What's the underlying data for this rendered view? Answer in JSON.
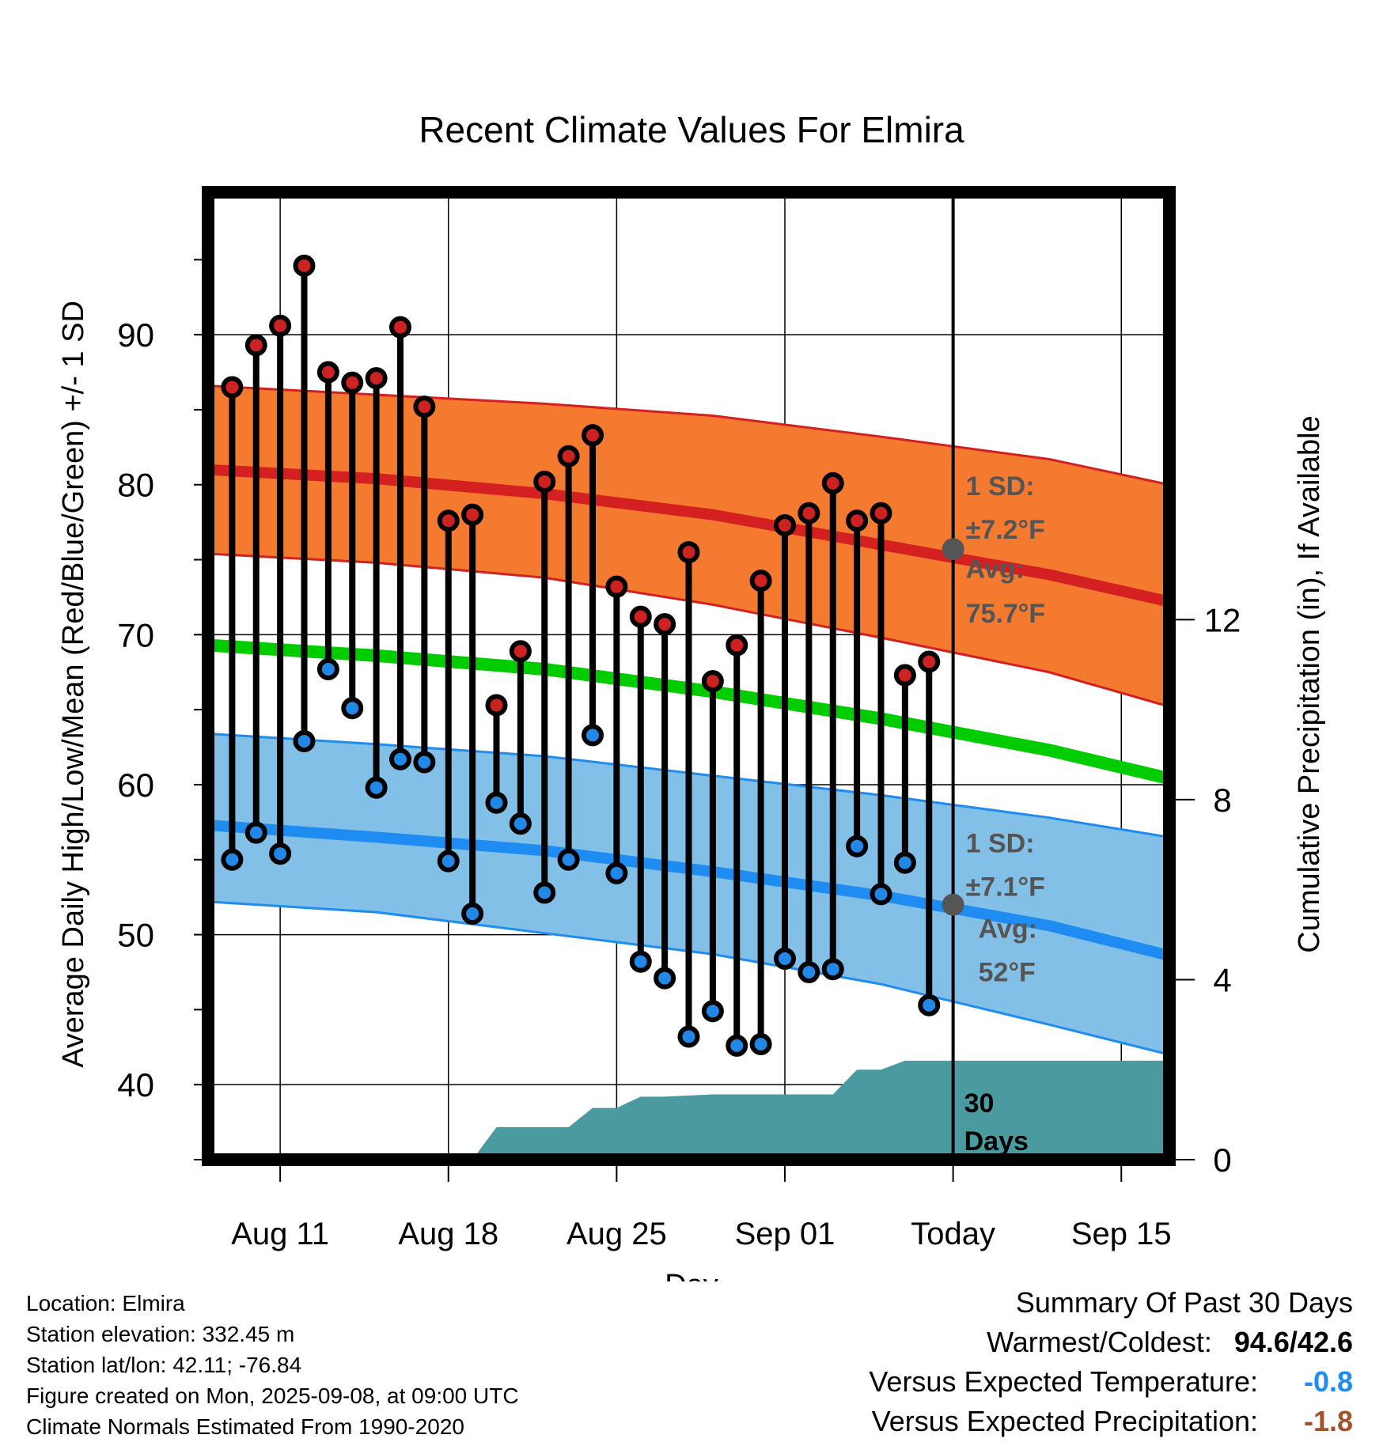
{
  "chart_data": {
    "type": "line",
    "title": "Recent Climate Values For Elmira",
    "xlabel": "Day",
    "ylabel_left": "Average Daily High/Low/Mean (Red/Blue/Green) +/- 1 SD",
    "ylabel_right": "Cumulative Precipitation (in), If Available",
    "x_ticks": [
      "Aug 11",
      "Aug 18",
      "Aug 25",
      "Sep 01",
      "Today",
      "Sep 15"
    ],
    "y_ticks_left": [
      "40",
      "50",
      "60",
      "70",
      "80",
      "90"
    ],
    "y_ticks_right": [
      "0",
      "4",
      "8",
      "12"
    ],
    "ylim_left": [
      35,
      99.5
    ],
    "ylim_right": [
      0,
      21.5
    ],
    "xlim": [
      "2025-08-08",
      "2025-09-17"
    ],
    "today": "2025-09-08",
    "grid": true,
    "days": [
      "2025-08-09",
      "2025-08-10",
      "2025-08-11",
      "2025-08-12",
      "2025-08-13",
      "2025-08-14",
      "2025-08-15",
      "2025-08-16",
      "2025-08-17",
      "2025-08-18",
      "2025-08-19",
      "2025-08-20",
      "2025-08-21",
      "2025-08-22",
      "2025-08-23",
      "2025-08-24",
      "2025-08-25",
      "2025-08-26",
      "2025-08-27",
      "2025-08-28",
      "2025-08-29",
      "2025-08-30",
      "2025-08-31",
      "2025-09-01",
      "2025-09-02",
      "2025-09-03",
      "2025-09-04",
      "2025-09-05",
      "2025-09-06",
      "2025-09-07"
    ],
    "highs": [
      86.5,
      89.3,
      90.6,
      94.6,
      87.5,
      86.8,
      87.1,
      90.5,
      85.2,
      77.6,
      78.0,
      65.3,
      68.9,
      80.2,
      81.9,
      83.3,
      73.2,
      71.2,
      70.7,
      75.5,
      66.9,
      69.3,
      73.6,
      77.3,
      78.1,
      80.1,
      77.6,
      78.1,
      67.3,
      68.2
    ],
    "lows": [
      55.0,
      56.8,
      55.4,
      62.9,
      67.7,
      65.1,
      59.8,
      61.7,
      61.5,
      54.9,
      51.4,
      58.8,
      57.4,
      52.8,
      55.0,
      63.3,
      54.1,
      48.2,
      47.1,
      43.2,
      44.9,
      42.6,
      42.7,
      48.4,
      47.5,
      47.7,
      55.9,
      52.7,
      54.8,
      45.3
    ],
    "normals": {
      "x": [
        "2025-08-08",
        "2025-08-15",
        "2025-08-22",
        "2025-08-29",
        "2025-09-05",
        "2025-09-12",
        "2025-09-17"
      ],
      "high_mean": [
        81.0,
        80.4,
        79.4,
        78.0,
        76.0,
        74.0,
        72.2
      ],
      "high_sd_upper": [
        86.6,
        86.0,
        85.4,
        84.6,
        83.2,
        81.7,
        80.0
      ],
      "high_sd_lower": [
        75.4,
        74.8,
        73.8,
        72.0,
        69.8,
        67.5,
        65.2
      ],
      "low_mean": [
        57.3,
        56.5,
        55.6,
        54.2,
        52.6,
        50.6,
        48.6
      ],
      "low_sd_upper": [
        63.4,
        62.7,
        61.9,
        60.6,
        59.3,
        57.8,
        56.5
      ],
      "low_sd_lower": [
        52.2,
        51.5,
        50.1,
        48.7,
        46.7,
        44.0,
        42.0
      ],
      "mean": [
        69.3,
        68.6,
        67.7,
        66.2,
        64.4,
        62.3,
        60.4
      ]
    },
    "precip": {
      "x": [
        "2025-08-19",
        "2025-08-20",
        "2025-08-23",
        "2025-08-24",
        "2025-08-25",
        "2025-08-26",
        "2025-08-27",
        "2025-08-29",
        "2025-09-03",
        "2025-09-04",
        "2025-09-05",
        "2025-09-06",
        "2025-09-17"
      ],
      "y": [
        0,
        0.72,
        0.72,
        1.15,
        1.15,
        1.4,
        1.4,
        1.45,
        1.45,
        2.0,
        2.0,
        2.2,
        2.2
      ],
      "label_line1": "30",
      "label_line2": "Days"
    },
    "annotations": {
      "high_sd": "1 SD:",
      "high_sd_value": "±7.2°F",
      "high_avg": "Avg:",
      "high_avg_value": "75.7°F",
      "low_sd": "1 SD:",
      "low_sd_value": "±7.1°F",
      "low_avg": "Avg:",
      "low_avg_value": "52°F",
      "today_high_normal": 75.7,
      "today_low_normal": 52.0
    },
    "colors": {
      "high_band": "#F47A30",
      "high_line": "#D42020",
      "low_band": "#82C0E8",
      "low_line": "#1E8CF0",
      "mean_line": "#00CC00",
      "precip": "#4A9BA0",
      "high_dot": "#CC2222",
      "low_dot": "#2288E8",
      "annotation": "#555555"
    }
  },
  "info": {
    "location": "Location: Elmira",
    "elevation": "Station elevation: 332.45 m",
    "latlon": "Station lat/lon: 42.11; -76.84",
    "created": "Figure created on Mon, 2025-09-08, at 09:00 UTC",
    "normals": "Climate Normals Estimated From 1990-2020"
  },
  "summary": {
    "title": "Summary Of Past 30 Days",
    "warm_cold_label": "Warmest/Coldest:",
    "warm_cold_value": "94.6/42.6",
    "temp_label": "Versus Expected Temperature:",
    "temp_value": "-0.8",
    "temp_color": "#1E8CF0",
    "precip_label": "Versus Expected Precipitation:",
    "precip_value": "-1.8",
    "precip_color": "#A0522D"
  }
}
